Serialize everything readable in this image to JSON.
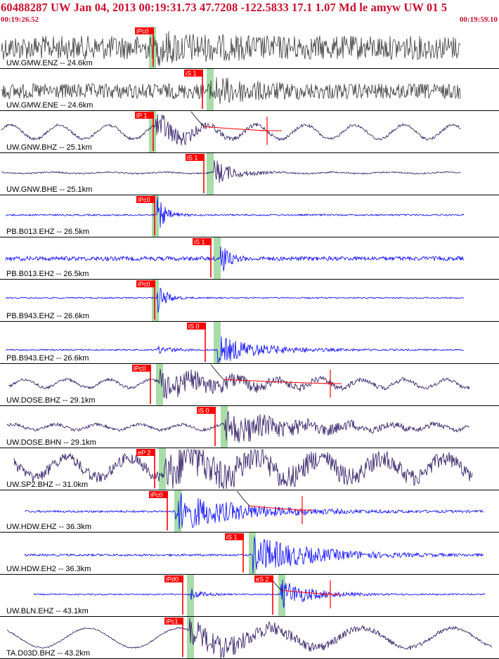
{
  "header": {
    "title": "60488287 UW Jan 04, 2013 00:19:31.73   47.7208 -122.5833 17.1 1.07 Md le amyw UW 01   5",
    "start_time": "00:19:26.52",
    "end_time": "00:19:59.10"
  },
  "colors": {
    "header_text": "#c8102e",
    "pick_box": "#ff0000",
    "pick_text": "#ffffff",
    "pick_band": "#a8dca8",
    "trace_dark": "#3a3a3a",
    "trace_navy": "#2a1460",
    "trace_blue": "#0000ff",
    "coda_fit": "#ff0000",
    "separator": "#000000"
  },
  "chart_data": {
    "type": "seismogram",
    "x_range": [
      "00:19:26.52",
      "00:19:59.10"
    ],
    "traces": [
      {
        "label": "UW.GMW.ENZ -- 24.6km",
        "picks": [
          "iPc0"
        ],
        "style": "dark"
      },
      {
        "label": "UW.GMW.ENE -- 24.6km",
        "picks": [
          "iS 1"
        ],
        "style": "dark"
      },
      {
        "label": "UW.GNW.BHZ -- 25.1km",
        "picks": [
          "iP 1"
        ],
        "style": "navy",
        "coda": true
      },
      {
        "label": "UW.GNW.BHE -- 25.1km",
        "picks": [
          "iS 1"
        ],
        "style": "navy"
      },
      {
        "label": "PB.B013.EHZ -- 26.5km",
        "picks": [
          "iPc0"
        ],
        "style": "blue"
      },
      {
        "label": "PB.B013.EH2 -- 26.5km",
        "picks": [
          "iS 1"
        ],
        "style": "blue"
      },
      {
        "label": "PB.B943.EHZ -- 26.6km",
        "picks": [
          "iPc0"
        ],
        "style": "blue"
      },
      {
        "label": "PB.B943.EH2 -- 26.6km",
        "picks": [
          "iS 0"
        ],
        "style": "blue"
      },
      {
        "label": "UW.DOSE.BHZ -- 29.1km",
        "picks": [
          "iPc0"
        ],
        "style": "navy",
        "coda": true
      },
      {
        "label": "UW.DOSE.BHN -- 29.1km",
        "picks": [
          "iS 0"
        ],
        "style": "navy"
      },
      {
        "label": "UW.SP2.BHZ -- 31.0km",
        "picks": [
          "eP 2"
        ],
        "style": "navy"
      },
      {
        "label": "UW.HDW.EHZ -- 36.3km",
        "picks": [
          "iPc0"
        ],
        "style": "blue",
        "coda": true
      },
      {
        "label": "UW.HDW.EH2 -- 36.3km",
        "picks": [
          "iS 1"
        ],
        "style": "blue"
      },
      {
        "label": "UW.BLN.EHZ -- 43.1km",
        "picks": [
          "iPd0",
          "eS 2"
        ],
        "style": "blue",
        "coda": true
      },
      {
        "label": "TA.D03D.BHZ -- 43.2km",
        "picks": [
          "iPc1"
        ],
        "style": "navy"
      }
    ]
  }
}
